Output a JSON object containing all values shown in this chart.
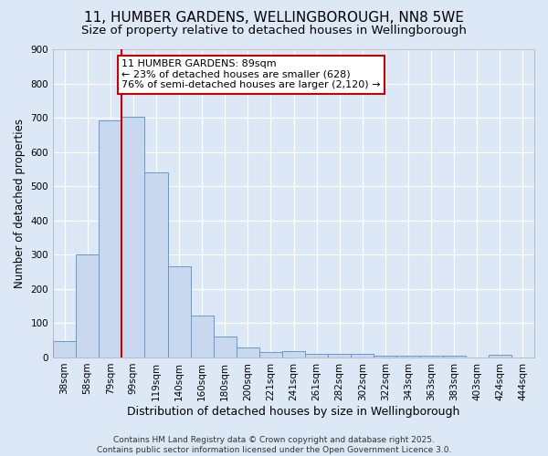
{
  "title1": "11, HUMBER GARDENS, WELLINGBOROUGH, NN8 5WE",
  "title2": "Size of property relative to detached houses in Wellingborough",
  "xlabel": "Distribution of detached houses by size in Wellingborough",
  "ylabel": "Number of detached properties",
  "bin_labels": [
    "38sqm",
    "58sqm",
    "79sqm",
    "99sqm",
    "119sqm",
    "140sqm",
    "160sqm",
    "180sqm",
    "200sqm",
    "221sqm",
    "241sqm",
    "261sqm",
    "282sqm",
    "302sqm",
    "322sqm",
    "343sqm",
    "363sqm",
    "383sqm",
    "403sqm",
    "424sqm",
    "444sqm"
  ],
  "bar_heights": [
    48,
    300,
    693,
    703,
    540,
    265,
    122,
    60,
    28,
    15,
    18,
    10,
    10,
    10,
    5,
    5,
    5,
    5,
    0,
    8,
    0
  ],
  "bar_color": "#c8d8ef",
  "bar_edge_color": "#6699cc",
  "marker_color": "#cc0000",
  "annotation_line1": "11 HUMBER GARDENS: 89sqm",
  "annotation_line2": "← 23% of detached houses are smaller (628)",
  "annotation_line3": "76% of semi-detached houses are larger (2,120) →",
  "annotation_box_color": "#cc0000",
  "annotation_fill": "#ffffff",
  "ylim": [
    0,
    900
  ],
  "yticks": [
    0,
    100,
    200,
    300,
    400,
    500,
    600,
    700,
    800,
    900
  ],
  "background_color": "#dce8f5",
  "plot_bg_color": "#dce8f5",
  "footer_text": "Contains HM Land Registry data © Crown copyright and database right 2025.\nContains public sector information licensed under the Open Government Licence 3.0.",
  "title1_fontsize": 11,
  "title2_fontsize": 9.5,
  "xlabel_fontsize": 9,
  "ylabel_fontsize": 8.5,
  "tick_fontsize": 7.5,
  "annotation_fontsize": 8
}
